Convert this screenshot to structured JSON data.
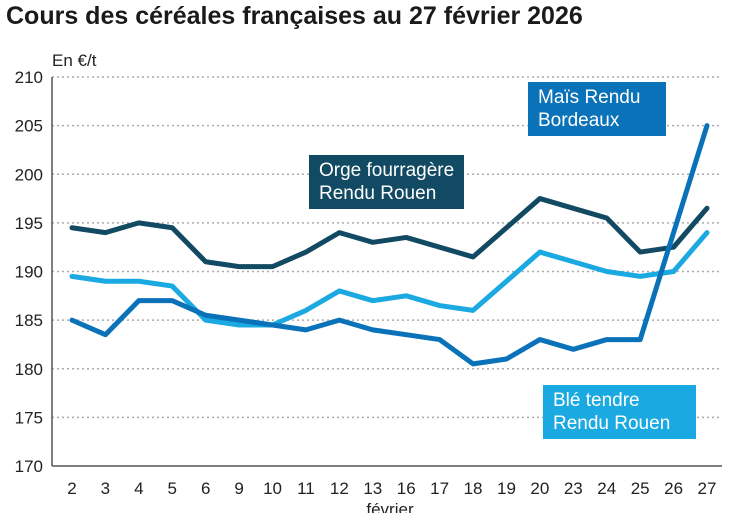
{
  "chart_data": {
    "type": "line",
    "title": "Cours des céréales françaises au 27 février 2026",
    "ylabel": "En €/t",
    "xlabel": "février",
    "ylim": [
      170,
      210
    ],
    "yticks": [
      170,
      175,
      180,
      185,
      190,
      195,
      200,
      205,
      210
    ],
    "grid": true,
    "categories": [
      "2",
      "3",
      "4",
      "5",
      "6",
      "9",
      "10",
      "11",
      "12",
      "13",
      "16",
      "17",
      "18",
      "19",
      "20",
      "23",
      "24",
      "25",
      "26",
      "27"
    ],
    "series": [
      {
        "name": "Orge fourragère Rendu Rouen",
        "color": "#134a63",
        "values": [
          194.5,
          194,
          195,
          194.5,
          191,
          190.5,
          190.5,
          192,
          194,
          193,
          193.5,
          192.5,
          191.5,
          194.5,
          197.5,
          196.5,
          195.5,
          192,
          192.5,
          196.5
        ]
      },
      {
        "name": "Blé tendre Rendu Rouen",
        "color": "#1ba9e1",
        "values": [
          189.5,
          189,
          189,
          188.5,
          185,
          184.5,
          184.5,
          186,
          188,
          187,
          187.5,
          186.5,
          186,
          189,
          192,
          191,
          190,
          189.5,
          190,
          194
        ]
      },
      {
        "name": "Maïs Rendu Bordeaux",
        "color": "#0a72b8",
        "values": [
          185,
          183.5,
          187,
          187,
          185.5,
          185,
          184.5,
          184,
          185,
          184,
          183.5,
          183,
          180.5,
          181,
          183,
          182,
          183,
          183,
          194,
          205
        ]
      }
    ],
    "labels": {
      "orge": [
        "Orge fourragère",
        "Rendu Rouen"
      ],
      "ble": [
        "Blé tendre",
        "Rendu Rouen"
      ],
      "mais": [
        "Maïs Rendu",
        "Bordeaux"
      ]
    }
  }
}
